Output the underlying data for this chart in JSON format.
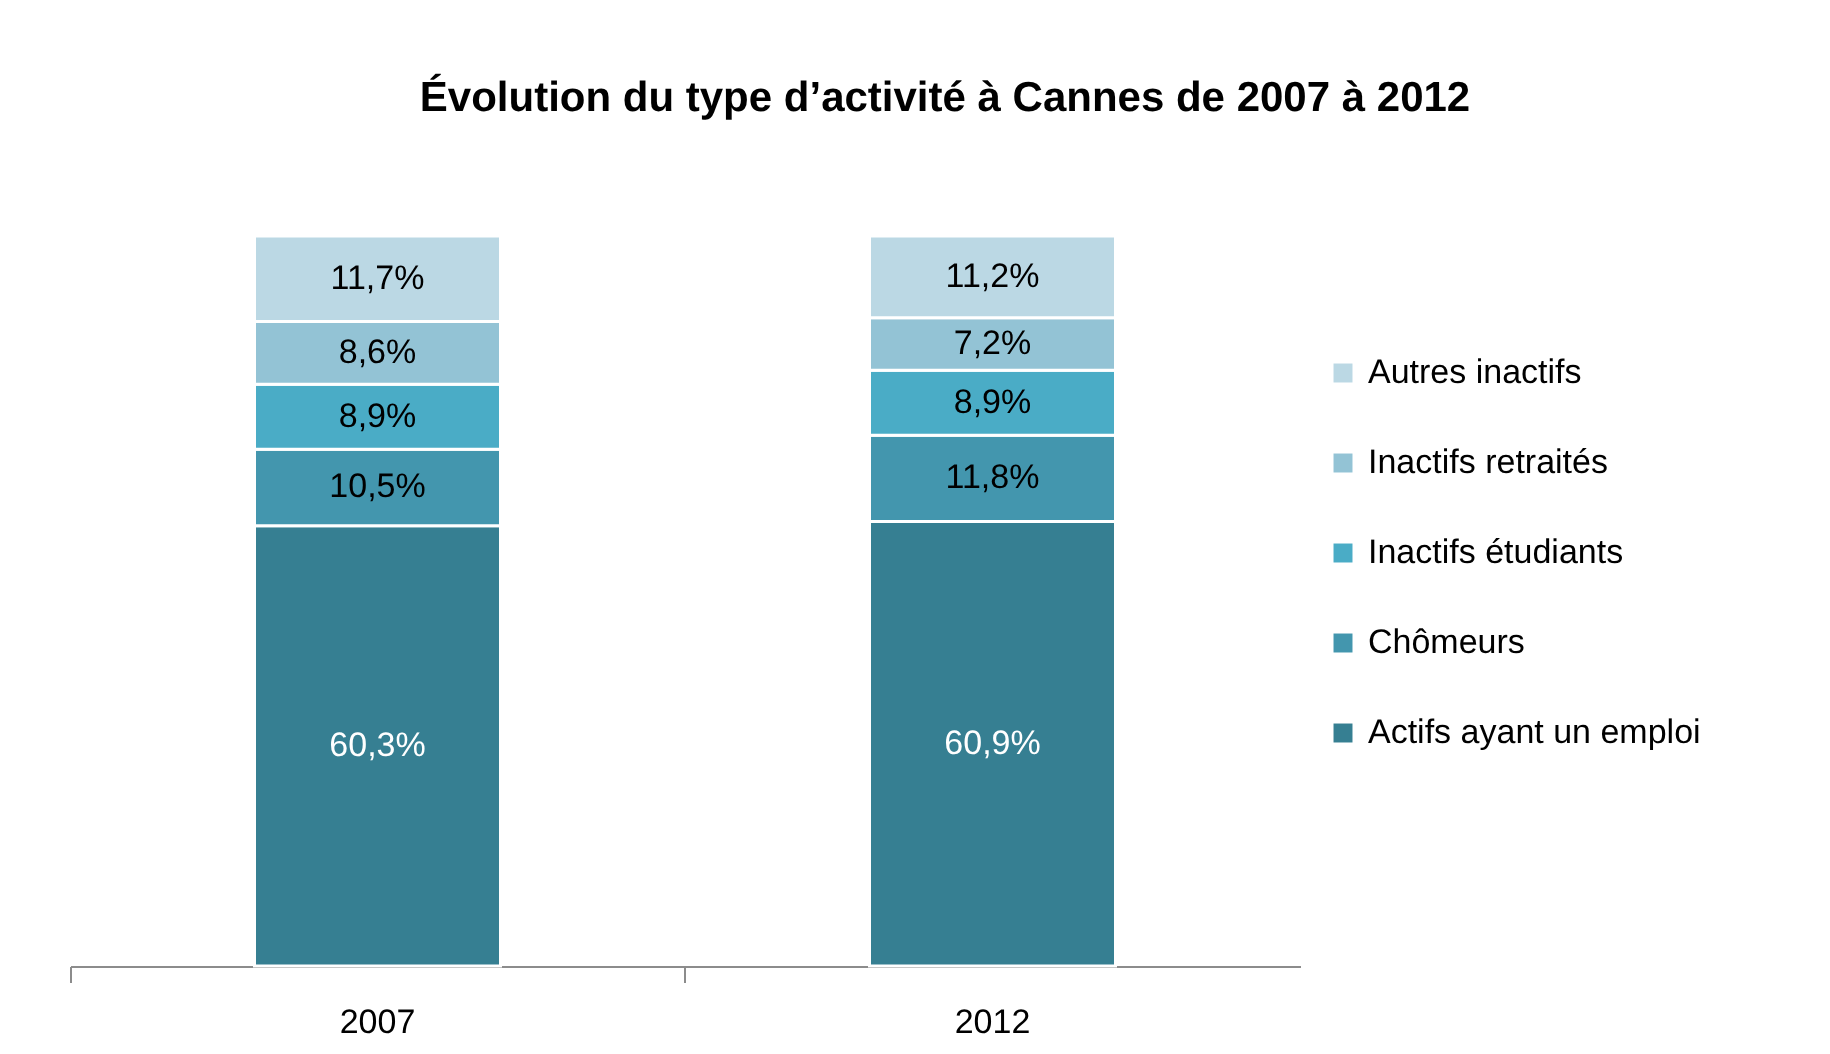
{
  "chart_data": {
    "type": "bar",
    "title": "Évolution du type d’activité à Cannes de 2007 à 2012",
    "categories": [
      "2007",
      "2012"
    ],
    "stacked": true,
    "ylim": [
      0,
      100
    ],
    "tick_labels": "x",
    "legend": "right",
    "series": [
      {
        "name": "Actifs ayant un emploi",
        "color": "#367f92",
        "values": [
          60.3,
          60.9
        ],
        "value_labels": [
          "60,3%",
          "60,9%"
        ]
      },
      {
        "name": "Chômeurs",
        "color": "#4396ae",
        "values": [
          10.5,
          11.8
        ],
        "value_labels": [
          "10,5%",
          "11,8%"
        ]
      },
      {
        "name": "Inactifs étudiants",
        "color": "#4aacc6",
        "values": [
          8.9,
          8.9
        ],
        "value_labels": [
          "8,9%",
          "8,9%"
        ]
      },
      {
        "name": "Inactifs retraités",
        "color": "#93c3d5",
        "values": [
          8.6,
          7.2
        ],
        "value_labels": [
          "8,6%",
          "7,2%"
        ]
      },
      {
        "name": "Autres inactifs",
        "color": "#bbd8e4",
        "values": [
          11.7,
          11.2
        ],
        "value_labels": [
          "11,7%",
          "11,2%"
        ]
      }
    ]
  }
}
